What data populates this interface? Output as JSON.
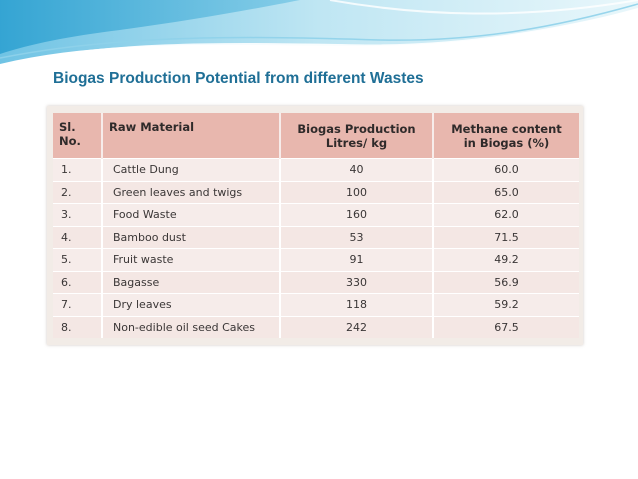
{
  "title": "Biogas Production Potential from different Wastes",
  "table": {
    "headers": {
      "sl_no": "Sl. No.",
      "raw_material": "Raw Material",
      "biogas_line1": "Biogas Production",
      "biogas_line2": "Litres/ kg",
      "methane_line1": "Methane content",
      "methane_line2": "in Biogas (%)"
    },
    "rows": [
      {
        "sl": "1.",
        "material": "Cattle Dung",
        "biogas": "40",
        "methane": "60.0"
      },
      {
        "sl": "2.",
        "material": "Green leaves and twigs",
        "biogas": "100",
        "methane": "65.0"
      },
      {
        "sl": "3.",
        "material": "Food Waste",
        "biogas": "160",
        "methane": "62.0"
      },
      {
        "sl": "4.",
        "material": "Bamboo dust",
        "biogas": "53",
        "methane": "71.5"
      },
      {
        "sl": "5.",
        "material": "Fruit waste",
        "biogas": "91",
        "methane": "49.2"
      },
      {
        "sl": "6.",
        "material": "Bagasse",
        "biogas": "330",
        "methane": "56.9"
      },
      {
        "sl": "7.",
        "material": "Dry leaves",
        "biogas": "118",
        "methane": "59.2"
      },
      {
        "sl": "8.",
        "material": "Non-edible oil seed Cakes",
        "biogas": "242",
        "methane": "67.5"
      }
    ]
  },
  "colors": {
    "title": "#1f6f96",
    "header_bg": "#e8b7ae",
    "wave_dark": "#2a9fd0",
    "wave_light": "#bfe6f3"
  }
}
